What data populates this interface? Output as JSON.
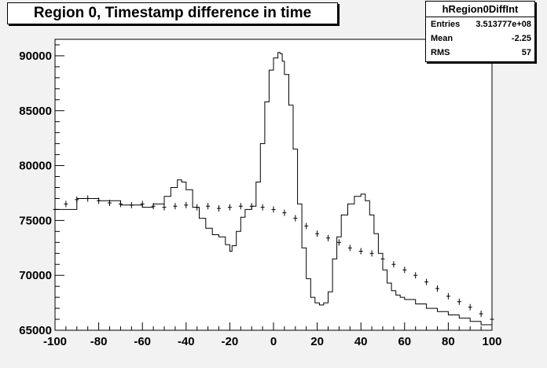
{
  "title": "Region 0, Timestamp difference in time",
  "stats": {
    "name": "hRegion0DiffInt",
    "rows": [
      {
        "label": "Entries",
        "value": "3.513777e+08"
      },
      {
        "label": "Mean",
        "value": "-2.25"
      },
      {
        "label": "RMS",
        "value": "57"
      }
    ]
  },
  "colors": {
    "background": "#f2f2f2",
    "plot_area": "#ffffff",
    "line": "#000000"
  },
  "chart_data": {
    "type": "line",
    "title": "Region 0, Timestamp difference in time",
    "xlabel": "",
    "ylabel": "",
    "xlim": [
      -100,
      100
    ],
    "ylim": [
      65000,
      91500
    ],
    "x_ticks": [
      -100,
      -80,
      -60,
      -40,
      -20,
      0,
      20,
      40,
      60,
      80,
      100
    ],
    "y_ticks": [
      65000,
      70000,
      75000,
      80000,
      85000,
      90000
    ],
    "x_tick_labels": [
      "-100",
      "-80",
      "-60",
      "-40",
      "-20",
      "0",
      "20",
      "40",
      "60",
      "80",
      "100"
    ],
    "y_tick_labels": [
      "65000",
      "70000",
      "75000",
      "80000",
      "85000",
      "90000"
    ],
    "series": [
      {
        "style": "step histogram",
        "x": [
          -100,
          -90,
          -80,
          -70,
          -60,
          -55,
          -50,
          -47,
          -44,
          -42,
          -40,
          -37,
          -34,
          -31,
          -28,
          -25,
          -22,
          -20,
          -19,
          -17,
          -15,
          -13,
          -10,
          -8,
          -6,
          -4,
          -2,
          0,
          2,
          3,
          4,
          5,
          7,
          9,
          11,
          13,
          15,
          17,
          19,
          21,
          23,
          25,
          27,
          29,
          31,
          34,
          37,
          40,
          42,
          44,
          46,
          48,
          50,
          52,
          54,
          56,
          58,
          60,
          65,
          70,
          75,
          80,
          85,
          90,
          95,
          100
        ],
        "y": [
          76000,
          77000,
          76800,
          76400,
          76200,
          76500,
          77200,
          78000,
          78700,
          78500,
          77800,
          76200,
          75200,
          74300,
          73700,
          73500,
          72800,
          72200,
          72700,
          74000,
          75300,
          76000,
          76300,
          78500,
          82000,
          85800,
          88700,
          89800,
          90300,
          90200,
          89500,
          88300,
          85500,
          81500,
          76500,
          72500,
          69700,
          68000,
          67500,
          67300,
          67500,
          68500,
          71500,
          73500,
          75500,
          76500,
          77200,
          77400,
          76800,
          75500,
          73800,
          72000,
          70500,
          69300,
          68600,
          68200,
          68000,
          67800,
          67400,
          67000,
          66700,
          66400,
          66100,
          65800,
          65500,
          65200
        ]
      },
      {
        "style": "points with error bars",
        "x": [
          -100,
          -95,
          -90,
          -85,
          -80,
          -75,
          -70,
          -65,
          -60,
          -55,
          -50,
          -45,
          -40,
          -35,
          -30,
          -25,
          -20,
          -15,
          -10,
          -5,
          0,
          5,
          10,
          15,
          20,
          25,
          30,
          35,
          40,
          45,
          50,
          55,
          60,
          65,
          70,
          75,
          80,
          85,
          90,
          95,
          100
        ],
        "y": [
          76000,
          76500,
          76900,
          77000,
          76800,
          76600,
          76500,
          76400,
          76500,
          76300,
          76200,
          76300,
          76400,
          76200,
          76300,
          76100,
          76200,
          76300,
          76300,
          76200,
          76000,
          75700,
          75200,
          74500,
          73800,
          73400,
          73000,
          72500,
          72200,
          72000,
          71500,
          71000,
          70500,
          70000,
          69400,
          68800,
          68100,
          67600,
          67100,
          66500,
          66000
        ]
      }
    ]
  }
}
